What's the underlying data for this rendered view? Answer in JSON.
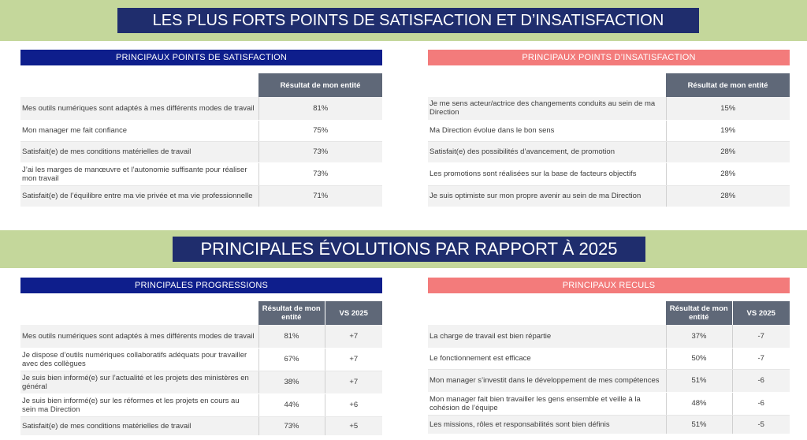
{
  "section1": {
    "title": "LES PLUS FORTS POINTS DE SATISFACTION ET D’INSATISFACTION",
    "satisfaction": {
      "header": "PRINCIPAUX POINTS DE SATISFACTION",
      "column": "Résultat de mon entité",
      "rows": [
        {
          "label": "Mes outils numériques sont adaptés à mes différents modes de travail",
          "value": "81%"
        },
        {
          "label": "Mon manager me fait confiance",
          "value": "75%"
        },
        {
          "label": "Satisfait(e) de mes conditions matérielles de travail",
          "value": "73%"
        },
        {
          "label": "J’ai les marges de manœuvre et l’autonomie suffisante pour réaliser mon travail",
          "value": "73%"
        },
        {
          "label": "Satisfait(e) de l’équilibre entre ma vie privée et ma vie professionnelle",
          "value": "71%"
        }
      ]
    },
    "insatisfaction": {
      "header": "PRINCIPAUX POINTS D’INSATISFACTION",
      "column": "Résultat de mon entité",
      "rows": [
        {
          "label": "Je me sens acteur/actrice des changements conduits au sein de ma Direction",
          "value": "15%"
        },
        {
          "label": "Ma Direction évolue dans le bon sens",
          "value": "19%"
        },
        {
          "label": "Satisfait(e) des possibilités d’avancement, de promotion",
          "value": "28%"
        },
        {
          "label": "Les promotions sont réalisées sur la base de facteurs objectifs",
          "value": "28%"
        },
        {
          "label": "Je suis optimiste sur mon propre avenir au sein de ma Direction",
          "value": "28%"
        }
      ]
    }
  },
  "section2": {
    "title": "PRINCIPALES ÉVOLUTIONS PAR RAPPORT À 2025",
    "progressions": {
      "header": "PRINCIPALES PROGRESSIONS",
      "column": "Résultat de mon entité",
      "column2": "VS 2025",
      "rows": [
        {
          "label": "Mes outils numériques sont adaptés à mes différents modes de travail",
          "value": "81%",
          "delta": "+7"
        },
        {
          "label": "Je dispose d’outils numériques collaboratifs adéquats pour travailler avec des collègues",
          "value": "67%",
          "delta": "+7"
        },
        {
          "label": "Je suis bien informé(e) sur l’actualité et les projets des ministères en général",
          "value": "38%",
          "delta": "+7"
        },
        {
          "label": "Je suis bien informé(e) sur les réformes et les projets en cours au sein ma Direction",
          "value": "44%",
          "delta": "+6"
        },
        {
          "label": "Satisfait(e) de mes conditions matérielles de travail",
          "value": "73%",
          "delta": "+5"
        }
      ]
    },
    "reculs": {
      "header": "PRINCIPAUX RECULS",
      "column": "Résultat de mon entité",
      "column2": "VS 2025",
      "rows": [
        {
          "label": "La charge de travail est bien répartie",
          "value": "37%",
          "delta": "-7"
        },
        {
          "label": "Le fonctionnement est efficace",
          "value": "50%",
          "delta": "-7"
        },
        {
          "label": "Mon manager s’investit dans le développement de mes compétences",
          "value": "51%",
          "delta": "-6"
        },
        {
          "label": "Mon manager fait bien travailler les gens ensemble et veille à la cohésion de l’équipe",
          "value": "48%",
          "delta": "-6"
        },
        {
          "label": "Les missions, rôles et responsabilités sont bien définis",
          "value": "51%",
          "delta": "-5"
        }
      ]
    }
  },
  "colors": {
    "band": "#c4d79b",
    "title_bg": "#1f2d6d",
    "header_blue": "#0e1e8c",
    "header_red": "#f37b7b",
    "column_header": "#5f6878"
  }
}
